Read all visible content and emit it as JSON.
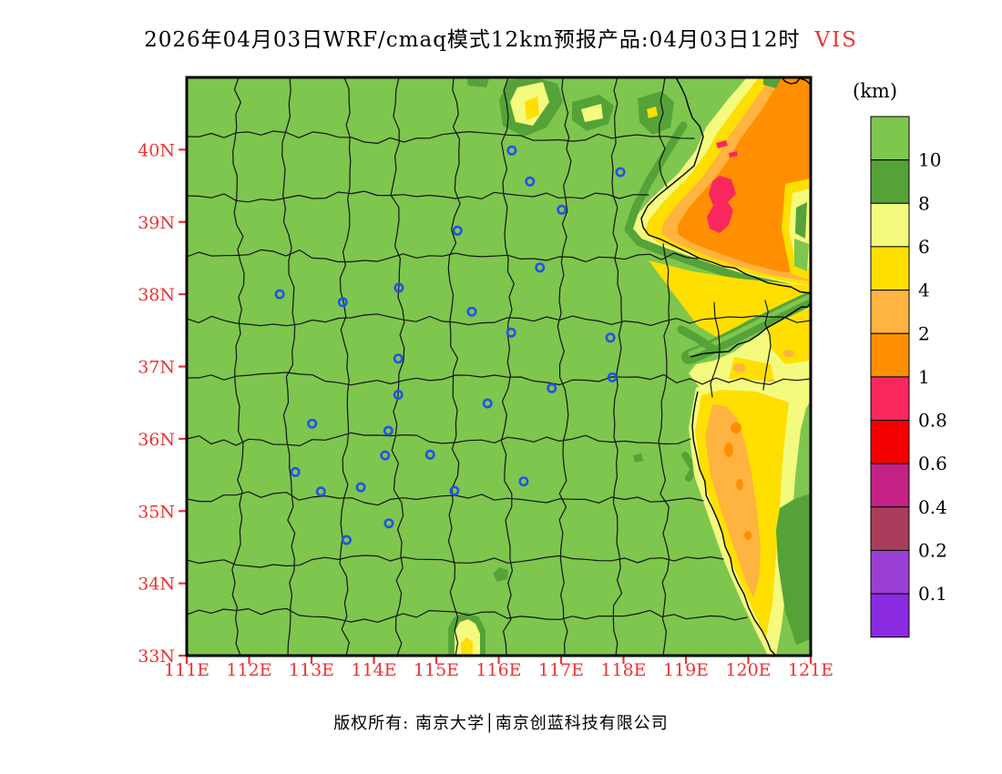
{
  "title": {
    "main": "2026年04月03日WRF/cmaq模式12km预报产品:04月03日12时",
    "variable": "VIS"
  },
  "legend": {
    "unit_label": "(km)",
    "tick_labels": [
      "10",
      "8",
      "6",
      "4",
      "2",
      "1",
      "0.8",
      "0.6",
      "0.4",
      "0.2",
      "0.1"
    ],
    "block_colors": [
      "#7EC64E",
      "#55A338",
      "#F3FA7E",
      "#FFDF00",
      "#FFB340",
      "#FF8F00",
      "#F8285F",
      "#F50000",
      "#C32185",
      "#A93D5B",
      "#9B3FD4",
      "#8A2BE2"
    ]
  },
  "axes": {
    "lat_labels": [
      "40N",
      "39N",
      "38N",
      "37N",
      "36N",
      "35N",
      "34N",
      "33N"
    ],
    "lon_labels": [
      "111E",
      "112E",
      "113E",
      "114E",
      "115E",
      "116E",
      "117E",
      "118E",
      "119E",
      "120E",
      "121E"
    ],
    "label_color": "#ee3333",
    "lon_range": [
      111,
      121
    ],
    "lat_range": [
      33,
      41
    ]
  },
  "map": {
    "base_color": "#7EC64E",
    "boundary_color": "#141414",
    "marker_color": "#2253E6",
    "city_markers_lonlat": [
      [
        116.21,
        39.99
      ],
      [
        117.95,
        39.69
      ],
      [
        116.5,
        39.56
      ],
      [
        117.01,
        39.17
      ],
      [
        115.34,
        38.88
      ],
      [
        116.66,
        38.37
      ],
      [
        112.49,
        38.0
      ],
      [
        113.5,
        37.89
      ],
      [
        114.4,
        38.09
      ],
      [
        115.57,
        37.76
      ],
      [
        116.2,
        37.47
      ],
      [
        117.79,
        37.4
      ],
      [
        114.39,
        37.11
      ],
      [
        117.82,
        36.85
      ],
      [
        116.85,
        36.7
      ],
      [
        114.39,
        36.61
      ],
      [
        115.82,
        36.49
      ],
      [
        113.01,
        36.21
      ],
      [
        114.23,
        36.11
      ],
      [
        114.18,
        35.77
      ],
      [
        114.9,
        35.78
      ],
      [
        112.74,
        35.54
      ],
      [
        113.79,
        35.33
      ],
      [
        113.15,
        35.27
      ],
      [
        116.4,
        35.41
      ],
      [
        115.29,
        35.28
      ],
      [
        114.24,
        34.83
      ],
      [
        113.56,
        34.6
      ]
    ]
  },
  "footer": {
    "copyright": "版权所有: 南京大学│南京创蓝科技有限公司"
  },
  "colors": {
    "background": "#FFFFFF",
    "map_border": "#000000",
    "axis_label_red": "#EE3333",
    "green": "#7EC64E",
    "dark_green": "#55A338",
    "pale_yellow": "#F3FA7E",
    "yellow": "#FFDF00",
    "light_orange": "#FFB340",
    "orange": "#FF8F00",
    "crimson": "#F8285F",
    "red": "#F50000",
    "magenta": "#C32185",
    "dark_rose": "#A93D5B",
    "purple": "#9B3FD4",
    "violet": "#8A2BE2"
  }
}
